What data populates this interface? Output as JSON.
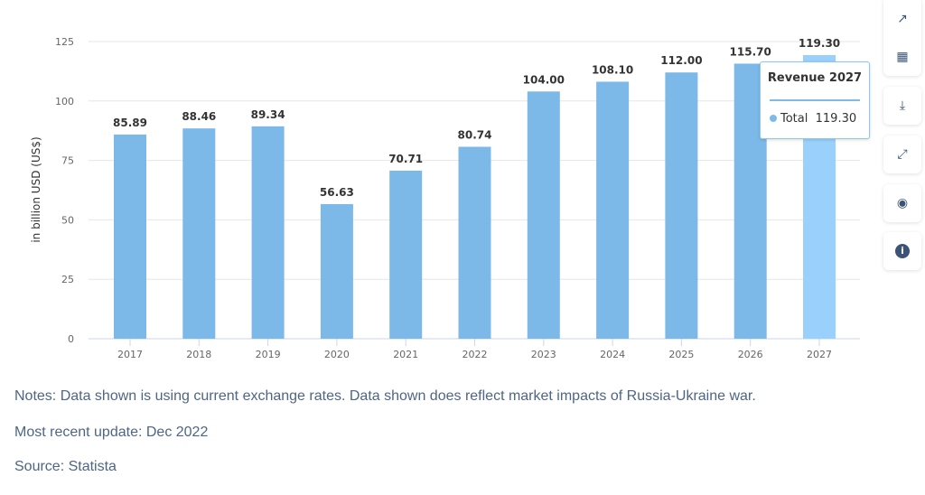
{
  "chart_data": {
    "type": "bar",
    "categories": [
      "2017",
      "2018",
      "2019",
      "2020",
      "2021",
      "2022",
      "2023",
      "2024",
      "2025",
      "2026",
      "2027"
    ],
    "values": [
      85.89,
      88.46,
      89.34,
      56.63,
      70.71,
      80.74,
      104.0,
      108.1,
      112.0,
      115.7,
      119.3
    ],
    "data_labels": [
      "85.89",
      "88.46",
      "89.34",
      "56.63",
      "70.71",
      "80.74",
      "104.00",
      "108.10",
      "112.00",
      "115.70",
      "119.30"
    ],
    "ylabel": "in billion USD (US$)",
    "ylim": [
      0,
      125
    ],
    "yticks": [
      "0",
      "25",
      "50",
      "75",
      "100",
      "125"
    ],
    "grid": true,
    "colors": {
      "bar": "#7cb9e8",
      "highlight": "#99d1fc"
    },
    "highlighted": "2027"
  },
  "tooltip": {
    "title": "Revenue 2027",
    "series": "Total",
    "value": "119.30"
  },
  "toolbar": [
    "chart-type-icon",
    "table-icon",
    "download-icon",
    "fullscreen-icon",
    "hide-icon",
    "info-icon"
  ],
  "notes": {
    "notes": "Notes: Data shown is using current exchange rates. Data shown does reflect market impacts of Russia-Ukraine war.",
    "update": "Most recent update: Dec 2022",
    "source": "Source: Statista"
  }
}
